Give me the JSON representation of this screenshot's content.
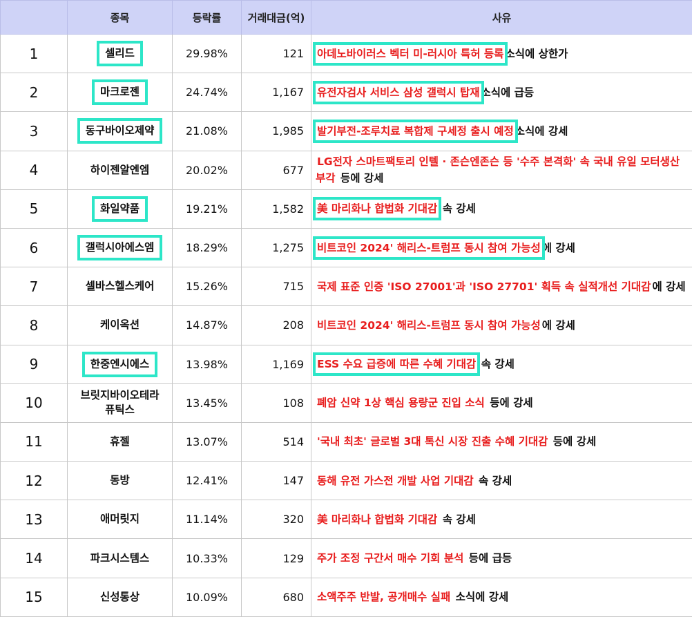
{
  "headers": [
    "",
    "종목",
    "등락률",
    "거래대금(억)",
    "사유"
  ],
  "rows": [
    {
      "rank": "1",
      "name": "셀리드",
      "rate": "29.98%",
      "amount": "121",
      "reason_red": "아데노바이러스 벡터 미-러시아 특허 등록",
      "reason_black": "소식에 상한가",
      "boxed": true
    },
    {
      "rank": "2",
      "name": "마크로젠",
      "rate": "24.74%",
      "amount": "1,167",
      "reason_red": "유전자검사 서비스 삼성 갤럭시 탑재",
      "reason_black": "소식에 급등",
      "boxed": true
    },
    {
      "rank": "3",
      "name": "동구바이오제약",
      "rate": "21.08%",
      "amount": "1,985",
      "reason_red": "발기부전-조루치료 복합제 구세정 출시 예정",
      "reason_black": "소식에 강세",
      "boxed": true
    },
    {
      "rank": "4",
      "name": "하이젠알엔엠",
      "rate": "20.02%",
      "amount": "677",
      "reason_red": "LG전자 스마트팩토리 인텔 · 존슨엔존슨 등 '수주 본격화' 속 국내 유일 모터생산 부각",
      "reason_black": " 등에 강세",
      "boxed": false
    },
    {
      "rank": "5",
      "name": "화일약품",
      "rate": "19.21%",
      "amount": "1,582",
      "reason_red": "美 마리화나 합법화 기대감",
      "reason_black": " 속 강세",
      "boxed": true
    },
    {
      "rank": "6",
      "name": "갤럭시아에스엠",
      "rate": "18.29%",
      "amount": "1,275",
      "reason_red": "비트코인 2024' 해리스-트럼프 동시 참여 가능성",
      "reason_black": "에 강세",
      "boxed": true
    },
    {
      "rank": "7",
      "name": "셀바스헬스케어",
      "rate": "15.26%",
      "amount": "715",
      "reason_red": "국제 표준 인증 'ISO 27001'과 'ISO 27701' 획득 속 실적개선 기대감",
      "reason_black": "에 강세",
      "boxed": false
    },
    {
      "rank": "8",
      "name": "케이옥션",
      "rate": "14.87%",
      "amount": "208",
      "reason_red": "비트코인 2024' 해리스-트럼프 동시 참여 가능성",
      "reason_black": "에 강세",
      "boxed": false
    },
    {
      "rank": "9",
      "name": "한중엔시에스",
      "rate": "13.98%",
      "amount": "1,169",
      "reason_red": "ESS 수요 급증에 따른 수혜 기대감",
      "reason_black": " 속 강세",
      "boxed": true
    },
    {
      "rank": "10",
      "name": "브릿지바이오테라퓨틱스",
      "rate": "13.45%",
      "amount": "108",
      "reason_red": "폐암 신약 1상 핵심 용량군 진입 소식",
      "reason_black": " 등에 강세",
      "boxed": false
    },
    {
      "rank": "11",
      "name": "휴젤",
      "rate": "13.07%",
      "amount": "514",
      "reason_red": "'국내 최초' 글로벌 3대 톡신 시장 진출 수혜 기대감",
      "reason_black": " 등에 강세",
      "boxed": false
    },
    {
      "rank": "12",
      "name": "동방",
      "rate": "12.41%",
      "amount": "147",
      "reason_red": "동해 유전 가스전 개발 사업 기대감",
      "reason_black": " 속 강세",
      "boxed": false
    },
    {
      "rank": "13",
      "name": "애머릿지",
      "rate": "11.14%",
      "amount": "320",
      "reason_red": "美 마리화나 합법화 기대감",
      "reason_black": " 속 강세",
      "boxed": false
    },
    {
      "rank": "14",
      "name": "파크시스템스",
      "rate": "10.33%",
      "amount": "129",
      "reason_red": "주가 조정 구간서 매수 기회 분석",
      "reason_black": " 등에 급등",
      "boxed": false
    },
    {
      "rank": "15",
      "name": "신성통상",
      "rate": "10.09%",
      "amount": "680",
      "reason_red": "소액주주 반발, 공개매수 실패",
      "reason_black": " 소식에 강세",
      "boxed": false
    }
  ],
  "colors": {
    "highlight_box": "#2de6c8",
    "reason_text": "#e81d1d",
    "header_bg": "#cfd3f7"
  }
}
